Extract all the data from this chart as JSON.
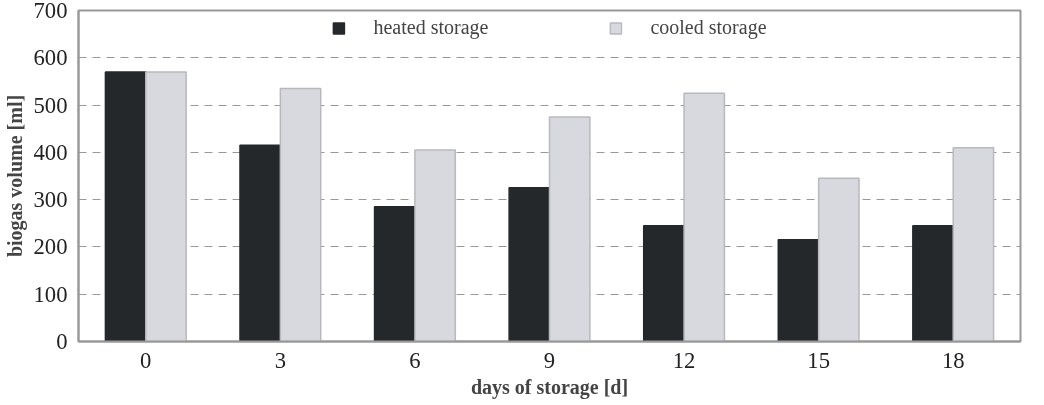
{
  "chart_data": {
    "type": "bar",
    "xlabel": "days of storage [d]",
    "ylabel": "biogas volume [ml]",
    "categories": [
      "0",
      "3",
      "6",
      "9",
      "12",
      "15",
      "18"
    ],
    "series": [
      {
        "name": "heated storage",
        "color": "#25282b",
        "values": [
          570,
          415,
          285,
          325,
          245,
          215,
          245
        ]
      },
      {
        "name": "cooled storage",
        "color": "#d8d9de",
        "values": [
          570,
          535,
          405,
          475,
          525,
          345,
          410
        ]
      }
    ],
    "ylim": [
      0,
      700
    ],
    "yticks": [
      0,
      100,
      200,
      300,
      400,
      500,
      600,
      700
    ],
    "grid": "y",
    "legend": "top"
  }
}
